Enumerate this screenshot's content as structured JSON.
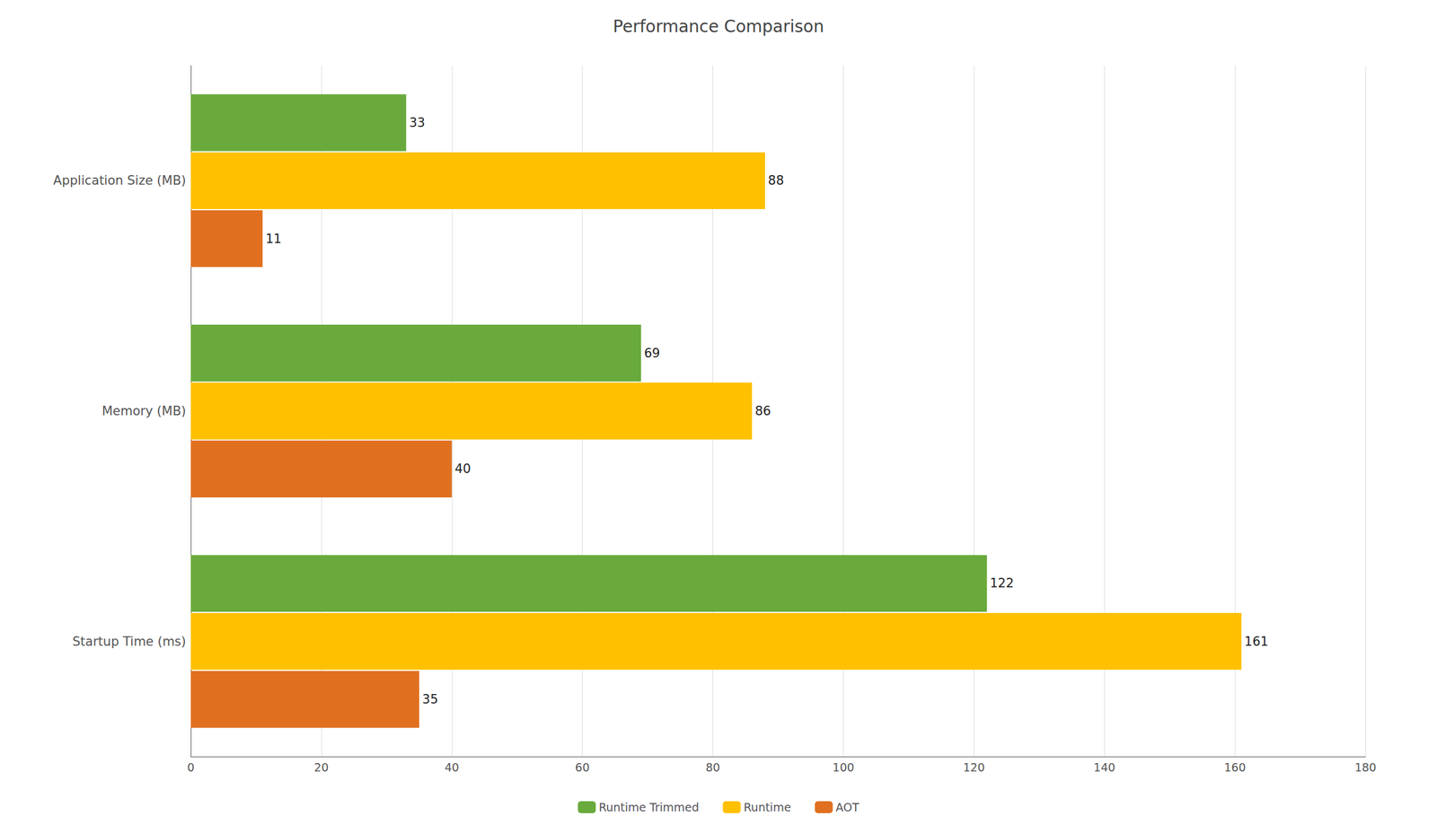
{
  "chart_data": {
    "type": "bar",
    "orientation": "horizontal",
    "title": "Performance Comparison",
    "categories": [
      "Startup Time (ms)",
      "Memory (MB)",
      "Application Size (MB)"
    ],
    "series": [
      {
        "name": "Runtime Trimmed",
        "color": "#6aaa3c",
        "values": [
          122,
          69,
          33
        ]
      },
      {
        "name": "Runtime",
        "color": "#ffc000",
        "values": [
          161,
          86,
          88
        ]
      },
      {
        "name": "AOT",
        "color": "#e07020",
        "values": [
          35,
          40,
          11
        ]
      }
    ],
    "xlim": [
      0,
      180
    ],
    "xticks": [
      0,
      20,
      40,
      60,
      80,
      100,
      120,
      140,
      160,
      180
    ],
    "grid": true,
    "legend": "bottom",
    "data_labels": true
  }
}
